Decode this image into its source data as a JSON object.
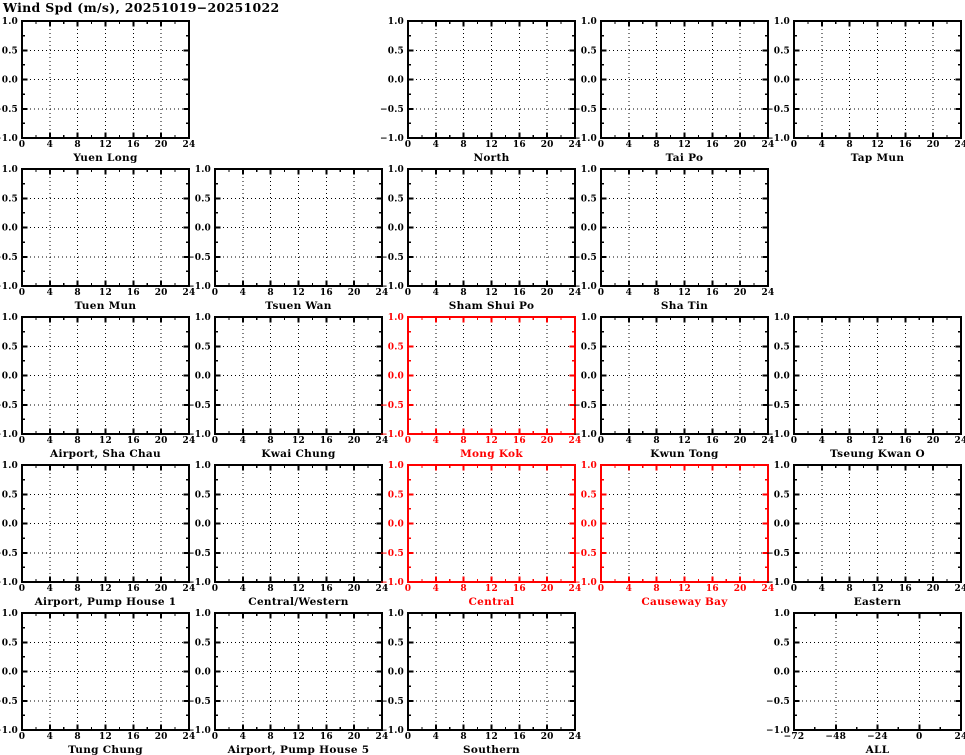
{
  "page_title": "Wind Spd (m/s), 20251019−20251022",
  "colors": {
    "axis": "#000000",
    "highlight": "#ff0000",
    "grid": "#000000",
    "background": "#ffffff"
  },
  "chart_data": {
    "type": "line",
    "title": "Wind Spd (m/s), 20251019−20251022",
    "xlabel": "",
    "ylabel": "",
    "grid": true,
    "legend": false,
    "ylim": [
      -1.0,
      1.0
    ],
    "yticks": [
      1.0,
      0.5,
      0.0,
      -0.5,
      -1.0
    ],
    "ytick_labels": [
      "1.0",
      "0.5",
      "0.0",
      "−0.5",
      "−1.0"
    ],
    "ygrid": [
      0.5,
      0.0,
      -0.5
    ],
    "y_minor_step": 0.25,
    "axes": {
      "hours": {
        "xlim": [
          0,
          24
        ],
        "ticks": [
          0,
          4,
          8,
          12,
          16,
          20,
          24
        ],
        "labels": [
          "0",
          "4",
          "8",
          "12",
          "16",
          "20",
          "24"
        ],
        "minor": 2,
        "grid": [
          4,
          8,
          12,
          16,
          20
        ]
      },
      "relative": {
        "xlim": [
          -72,
          24
        ],
        "ticks": [
          -72,
          -48,
          -24,
          0,
          24
        ],
        "labels": [
          "−72",
          "−48",
          "−24",
          "0",
          "24"
        ],
        "minor": 12,
        "grid": [
          -48,
          -24,
          0
        ]
      }
    },
    "subplots": [
      {
        "row": 0,
        "col": 0,
        "title": "Yuen Long",
        "axis": "hours",
        "highlight": false,
        "series": []
      },
      {
        "row": 0,
        "col": 2,
        "title": "North",
        "axis": "hours",
        "highlight": false,
        "series": []
      },
      {
        "row": 0,
        "col": 3,
        "title": "Tai Po",
        "axis": "hours",
        "highlight": false,
        "series": []
      },
      {
        "row": 0,
        "col": 4,
        "title": "Tap Mun",
        "axis": "hours",
        "highlight": false,
        "series": []
      },
      {
        "row": 1,
        "col": 0,
        "title": "Tuen Mun",
        "axis": "hours",
        "highlight": false,
        "series": []
      },
      {
        "row": 1,
        "col": 1,
        "title": "Tsuen Wan",
        "axis": "hours",
        "highlight": false,
        "series": []
      },
      {
        "row": 1,
        "col": 2,
        "title": "Sham Shui Po",
        "axis": "hours",
        "highlight": false,
        "series": []
      },
      {
        "row": 1,
        "col": 3,
        "title": "Sha Tin",
        "axis": "hours",
        "highlight": false,
        "series": []
      },
      {
        "row": 2,
        "col": 0,
        "title": "Airport, Sha Chau",
        "axis": "hours",
        "highlight": false,
        "series": []
      },
      {
        "row": 2,
        "col": 1,
        "title": "Kwai Chung",
        "axis": "hours",
        "highlight": false,
        "series": []
      },
      {
        "row": 2,
        "col": 2,
        "title": "Mong Kok",
        "axis": "hours",
        "highlight": true,
        "series": []
      },
      {
        "row": 2,
        "col": 3,
        "title": "Kwun Tong",
        "axis": "hours",
        "highlight": false,
        "series": []
      },
      {
        "row": 2,
        "col": 4,
        "title": "Tseung Kwan O",
        "axis": "hours",
        "highlight": false,
        "series": []
      },
      {
        "row": 3,
        "col": 0,
        "title": "Airport, Pump House 1",
        "axis": "hours",
        "highlight": false,
        "series": []
      },
      {
        "row": 3,
        "col": 1,
        "title": "Central/Western",
        "axis": "hours",
        "highlight": false,
        "series": []
      },
      {
        "row": 3,
        "col": 2,
        "title": "Central",
        "axis": "hours",
        "highlight": true,
        "series": []
      },
      {
        "row": 3,
        "col": 3,
        "title": "Causeway Bay",
        "axis": "hours",
        "highlight": true,
        "series": []
      },
      {
        "row": 3,
        "col": 4,
        "title": "Eastern",
        "axis": "hours",
        "highlight": false,
        "series": []
      },
      {
        "row": 4,
        "col": 0,
        "title": "Tung Chung",
        "axis": "hours",
        "highlight": false,
        "series": []
      },
      {
        "row": 4,
        "col": 1,
        "title": "Airport, Pump House 5",
        "axis": "hours",
        "highlight": false,
        "series": []
      },
      {
        "row": 4,
        "col": 2,
        "title": "Southern",
        "axis": "hours",
        "highlight": false,
        "series": []
      },
      {
        "row": 4,
        "col": 4,
        "title": "ALL",
        "axis": "relative",
        "highlight": false,
        "series": []
      }
    ]
  }
}
